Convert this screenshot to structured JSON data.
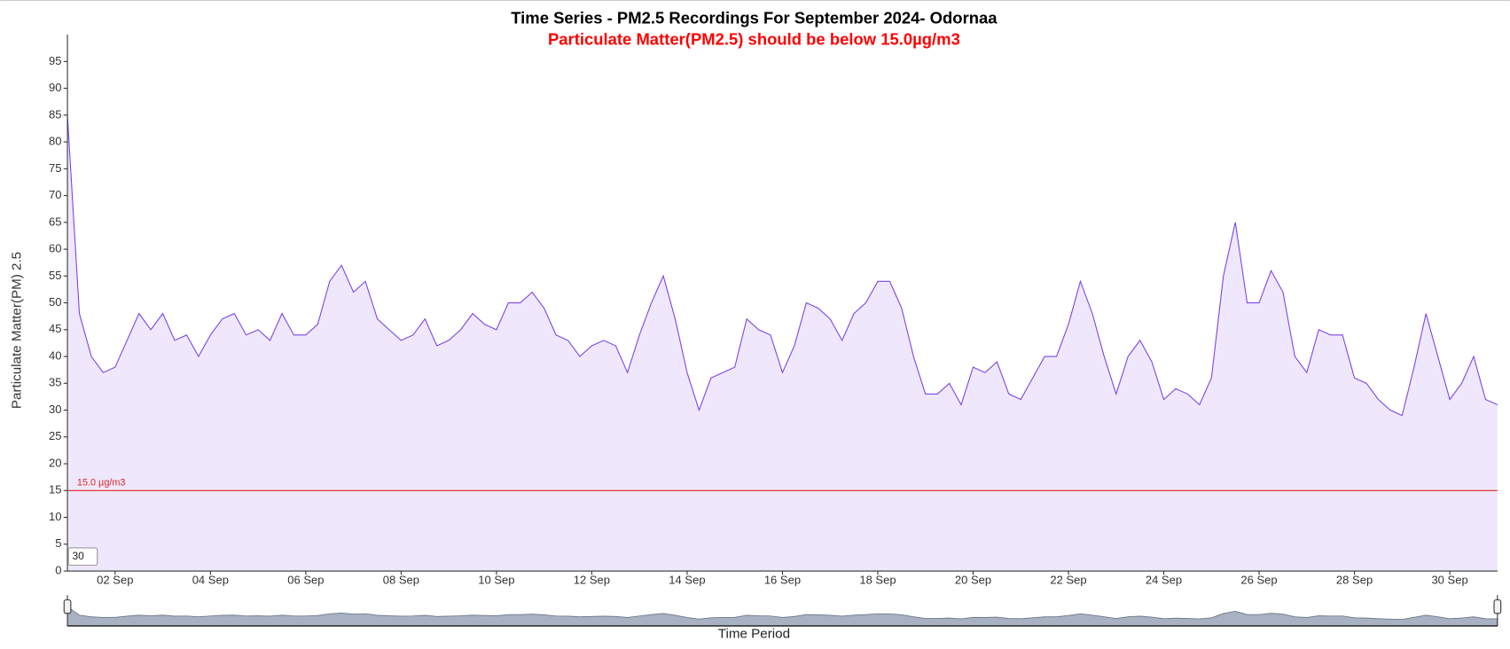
{
  "chart_data": {
    "type": "area",
    "title": "Time Series - PM2.5 Recordings For September 2024- Odornaa",
    "subtitle": "Particulate Matter(PM2.5) should be below 15.0µg/m3",
    "y_label": "Particulate Matter(PM) 2.5",
    "x_label": "Time Period",
    "zoom_input": "30",
    "color": "#7b44e8",
    "fill": "#efe8fc",
    "threshold": {
      "value": 15,
      "label": "15.0 µg/m3",
      "color": "#e02424"
    },
    "x": [
      1,
      1.25,
      1.5,
      1.75,
      2,
      2.25,
      2.5,
      2.75,
      3,
      3.25,
      3.5,
      3.75,
      4,
      4.25,
      4.5,
      4.75,
      5,
      5.25,
      5.5,
      5.75,
      6,
      6.25,
      6.5,
      6.75,
      7,
      7.25,
      7.5,
      7.75,
      8,
      8.25,
      8.5,
      8.75,
      9,
      9.25,
      9.5,
      9.75,
      10,
      10.25,
      10.5,
      10.75,
      11,
      11.25,
      11.5,
      11.75,
      12,
      12.25,
      12.5,
      12.75,
      13,
      13.25,
      13.5,
      13.75,
      14,
      14.25,
      14.5,
      14.75,
      15,
      15.25,
      15.5,
      15.75,
      16,
      16.25,
      16.5,
      16.75,
      17,
      17.25,
      17.5,
      17.75,
      18,
      18.25,
      18.5,
      18.75,
      19,
      19.25,
      19.5,
      19.75,
      20,
      20.25,
      20.5,
      20.75,
      21,
      21.25,
      21.5,
      21.75,
      22,
      22.25,
      22.5,
      22.75,
      23,
      23.25,
      23.5,
      23.75,
      24,
      24.25,
      24.5,
      24.75,
      25,
      25.25,
      25.5,
      25.75,
      26,
      26.25,
      26.5,
      26.75,
      27,
      27.25,
      27.5,
      27.75,
      28,
      28.25,
      28.5,
      28.75,
      29,
      29.25,
      29.5,
      29.75,
      30,
      30.25,
      30.5,
      30.75,
      31
    ],
    "values": [
      85,
      48,
      40,
      37,
      38,
      43,
      48,
      45,
      48,
      43,
      44,
      40,
      44,
      47,
      48,
      44,
      45,
      43,
      48,
      44,
      44,
      46,
      54,
      57,
      52,
      54,
      47,
      45,
      43,
      44,
      47,
      42,
      43,
      45,
      48,
      46,
      45,
      50,
      50,
      52,
      49,
      44,
      43,
      40,
      42,
      43,
      42,
      37,
      44,
      50,
      55,
      47,
      37,
      30,
      36,
      37,
      38,
      47,
      45,
      44,
      37,
      42,
      50,
      49,
      47,
      43,
      48,
      50,
      54,
      54,
      49,
      40,
      33,
      33,
      35,
      31,
      38,
      37,
      39,
      33,
      32,
      36,
      40,
      40,
      46,
      54,
      48,
      40,
      33,
      40,
      43,
      39,
      32,
      34,
      33,
      31,
      36,
      55,
      65,
      50,
      50,
      56,
      52,
      40,
      37,
      45,
      44,
      44,
      36,
      35,
      32,
      30,
      29,
      38,
      48,
      40,
      32,
      35,
      40,
      32,
      31
    ],
    "xlim": [
      1,
      31
    ],
    "ylim": [
      0,
      100
    ],
    "xticks": [
      {
        "value": 2,
        "label": "02 Sep"
      },
      {
        "value": 4,
        "label": "04 Sep"
      },
      {
        "value": 6,
        "label": "06 Sep"
      },
      {
        "value": 8,
        "label": "08 Sep"
      },
      {
        "value": 10,
        "label": "10 Sep"
      },
      {
        "value": 12,
        "label": "12 Sep"
      },
      {
        "value": 14,
        "label": "14 Sep"
      },
      {
        "value": 16,
        "label": "16 Sep"
      },
      {
        "value": 18,
        "label": "18 Sep"
      },
      {
        "value": 20,
        "label": "20 Sep"
      },
      {
        "value": 22,
        "label": "22 Sep"
      },
      {
        "value": 24,
        "label": "24 Sep"
      },
      {
        "value": 26,
        "label": "26 Sep"
      },
      {
        "value": 28,
        "label": "28 Sep"
      },
      {
        "value": 30,
        "label": "30 Sep"
      }
    ],
    "yticks": [
      0,
      5,
      10,
      15,
      20,
      25,
      30,
      35,
      40,
      45,
      50,
      55,
      60,
      65,
      70,
      75,
      80,
      85,
      90,
      95
    ]
  }
}
